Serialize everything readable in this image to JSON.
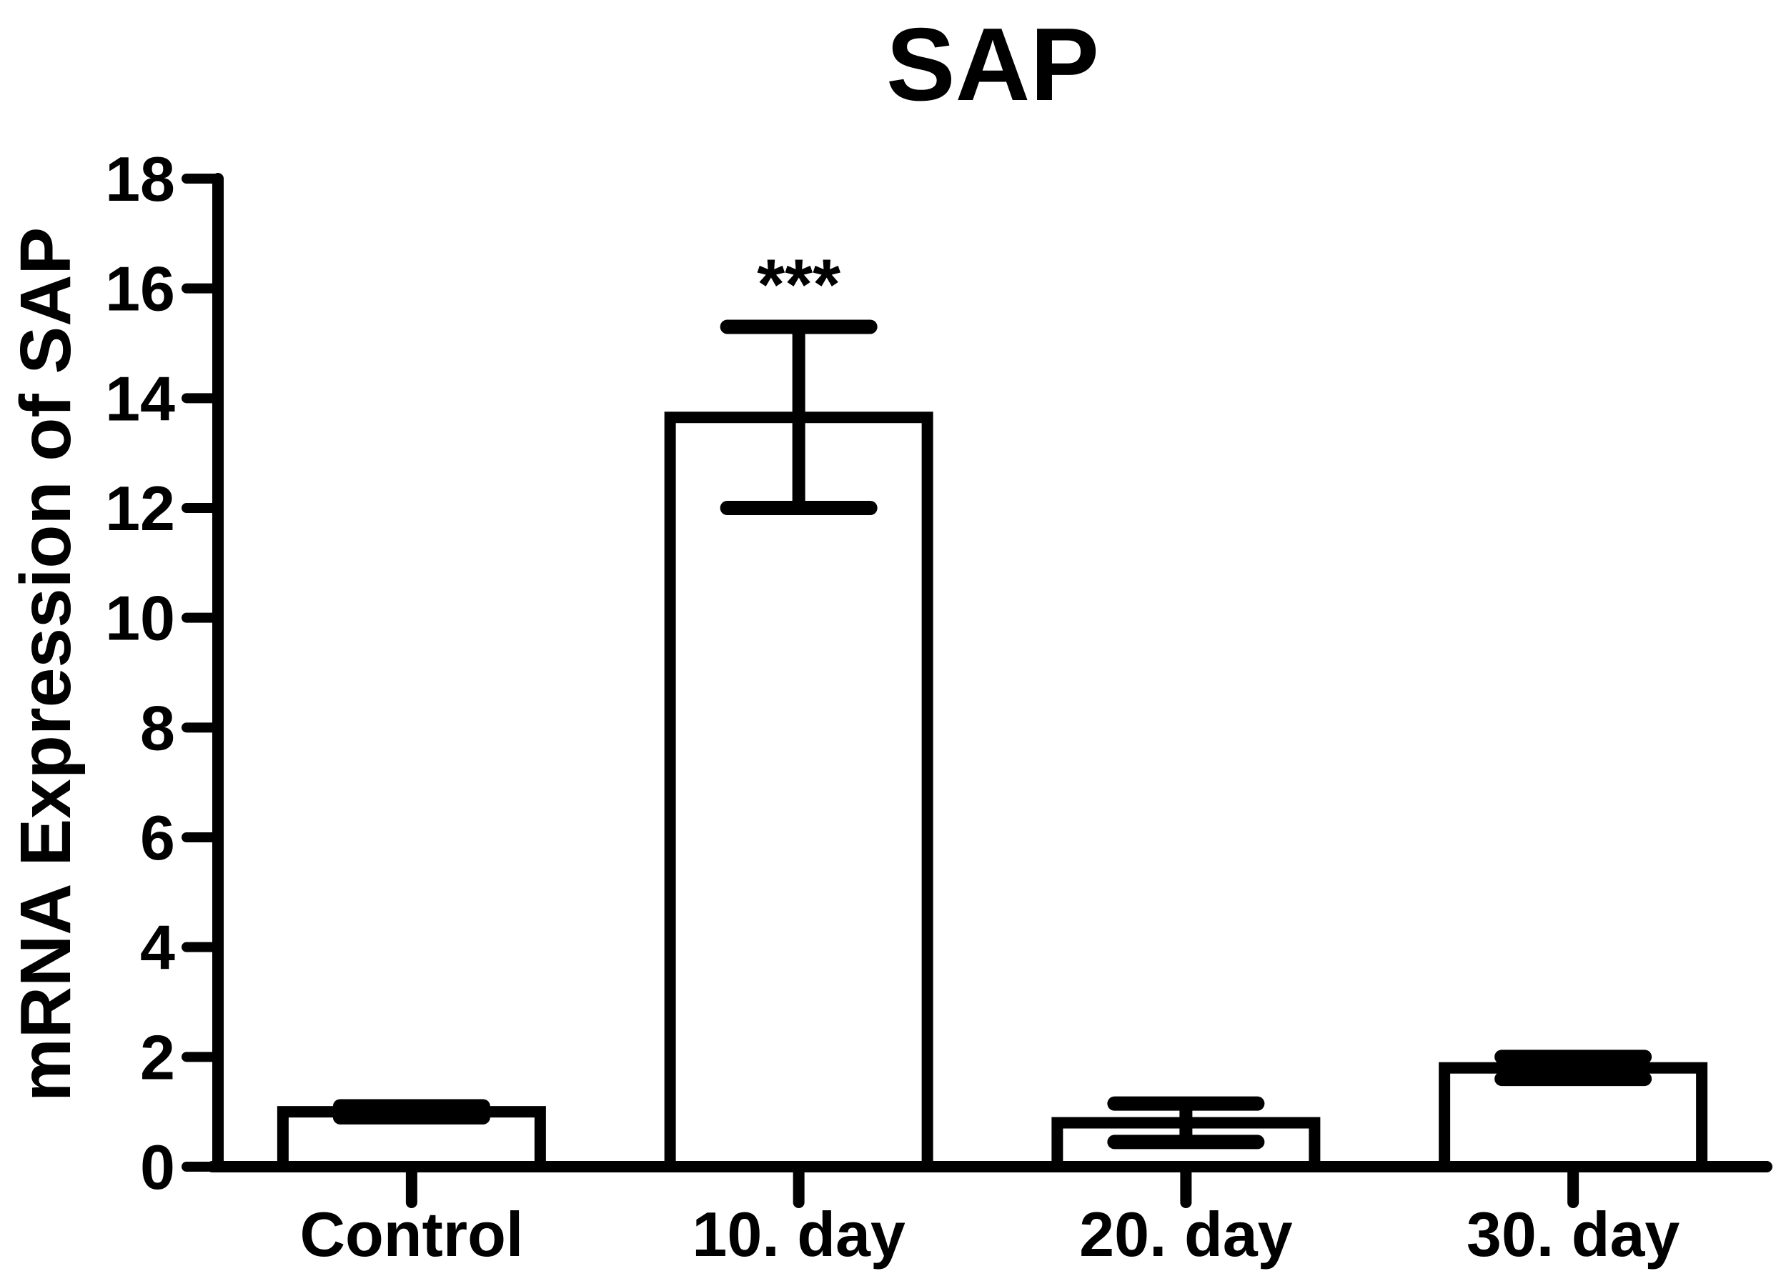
{
  "chart_data": {
    "type": "bar",
    "title": "SAP",
    "ylabel": "mRNA Expression of SAP",
    "xlabel": "",
    "ylim": [
      0,
      18
    ],
    "ytick_step": 2,
    "ytick_labels": [
      "0",
      "2",
      "4",
      "6",
      "8",
      "10",
      "12",
      "14",
      "16",
      "18"
    ],
    "categories": [
      "Control",
      "10. day",
      "20. day",
      "30. day"
    ],
    "series": [
      {
        "name": "mRNA Expression of SAP",
        "values": [
          1.0,
          13.65,
          0.8,
          1.8
        ],
        "error_upper": [
          1.1,
          15.3,
          1.15,
          2.0
        ],
        "error_lower": [
          0.9,
          12.0,
          0.45,
          1.6
        ]
      }
    ],
    "annotations": [
      {
        "category": "10. day",
        "category_index": 1,
        "text": "***"
      }
    ],
    "bar_fill": "#ffffff",
    "line_color": "#000000",
    "background": "#ffffff",
    "grid": false,
    "legend": "none"
  }
}
